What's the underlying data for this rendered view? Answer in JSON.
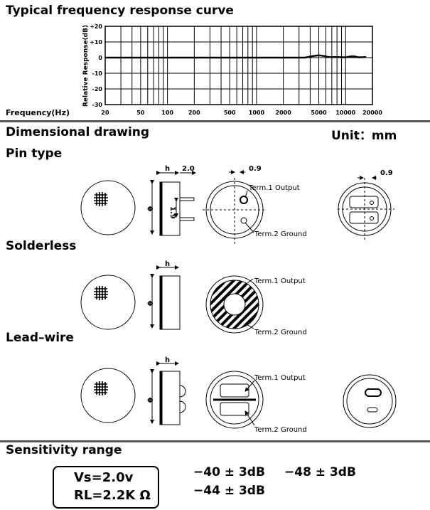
{
  "headings": {
    "freq_title": "Typical frequency response curve",
    "dim_title": "Dimensional drawing",
    "unit": "Unit：mm",
    "pin_type": "Pin type",
    "solderless": "Solderless",
    "lead_wire": "Lead–wire",
    "sensitivity": "Sensitivity range"
  },
  "chart_data": {
    "type": "line",
    "title": "Typical frequency response curve",
    "xlabel": "Frequency(Hz)",
    "ylabel": "Relative Response(dB)",
    "x_scale": "log",
    "xlim": [
      20,
      20000
    ],
    "ylim": [
      -30,
      20
    ],
    "grid": true,
    "x_ticks": [
      "20",
      "50",
      "100",
      "200",
      "500",
      "1000",
      "2000",
      "5000",
      "10000",
      "20000"
    ],
    "y_ticks": [
      "+20",
      "+10",
      "0",
      "-10",
      "-20",
      "-30"
    ],
    "series": [
      {
        "x": [
          20,
          1000,
          3500,
          4300,
          5000,
          5800,
          6500,
          8000,
          10000,
          11500,
          12500,
          14000,
          17000
        ],
        "y": [
          0,
          0,
          0,
          1,
          1.5,
          1,
          0.3,
          0.3,
          0.2,
          0.8,
          0.8,
          0.2,
          0.3
        ]
      }
    ]
  },
  "drawing": {
    "h": "h",
    "pin_len": "2.0",
    "pin_gap": "1.9",
    "phi": "Φ",
    "offset": "0.9",
    "term1": "Term.1 Output",
    "term2": "Term.2 Ground"
  },
  "sensitivity": {
    "vs": "Vs=2.0v",
    "rl": "RL=2.2K Ω",
    "values": [
      "−40 ± 3dB",
      "−48 ± 3dB",
      "−44 ± 3dB"
    ]
  }
}
